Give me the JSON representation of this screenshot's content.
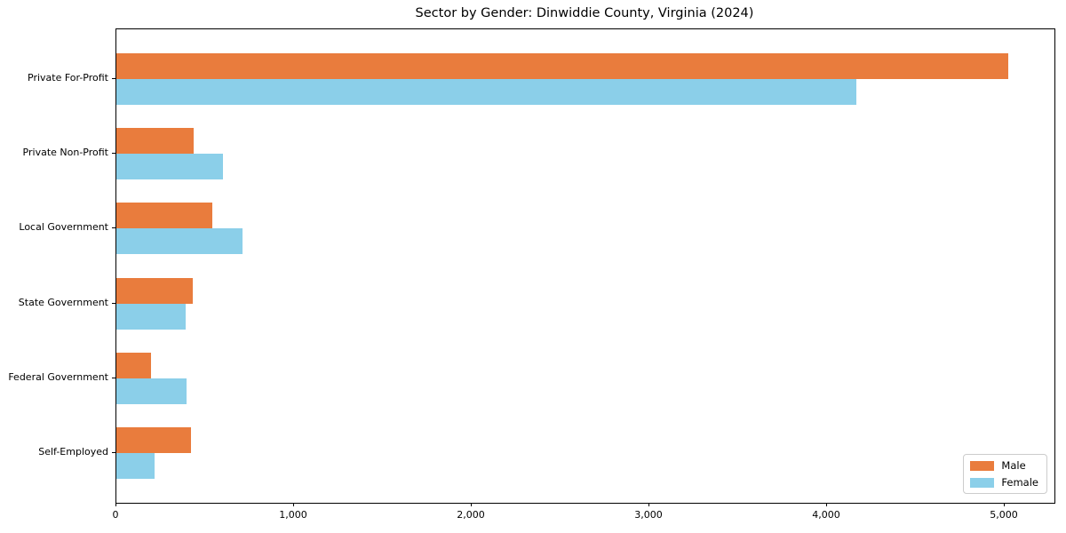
{
  "chart_data": {
    "type": "bar",
    "orientation": "horizontal",
    "title": "Sector by Gender: Dinwiddie County, Virginia (2024)",
    "categories": [
      "Private For-Profit",
      "Private Non-Profit",
      "Local Government",
      "State Government",
      "Federal Government",
      "Self-Employed"
    ],
    "series": [
      {
        "name": "Male",
        "color": "#E97C3D",
        "values": [
          5020,
          437,
          542,
          432,
          197,
          422
        ]
      },
      {
        "name": "Female",
        "color": "#8BCFE9",
        "values": [
          4165,
          602,
          712,
          392,
          397,
          217
        ]
      }
    ],
    "xlabel": "",
    "ylabel": "",
    "xlim": [
      0,
      5280
    ],
    "xticks": [
      0,
      1000,
      2000,
      3000,
      4000,
      5000
    ],
    "xtick_labels": [
      "0",
      "1,000",
      "2,000",
      "3,000",
      "4,000",
      "5,000"
    ],
    "grid": false,
    "legend_position": "lower right",
    "frame": "full-box",
    "colors": {
      "axis": "#000000",
      "background": "#ffffff",
      "legend_border": "#cccccc"
    }
  }
}
